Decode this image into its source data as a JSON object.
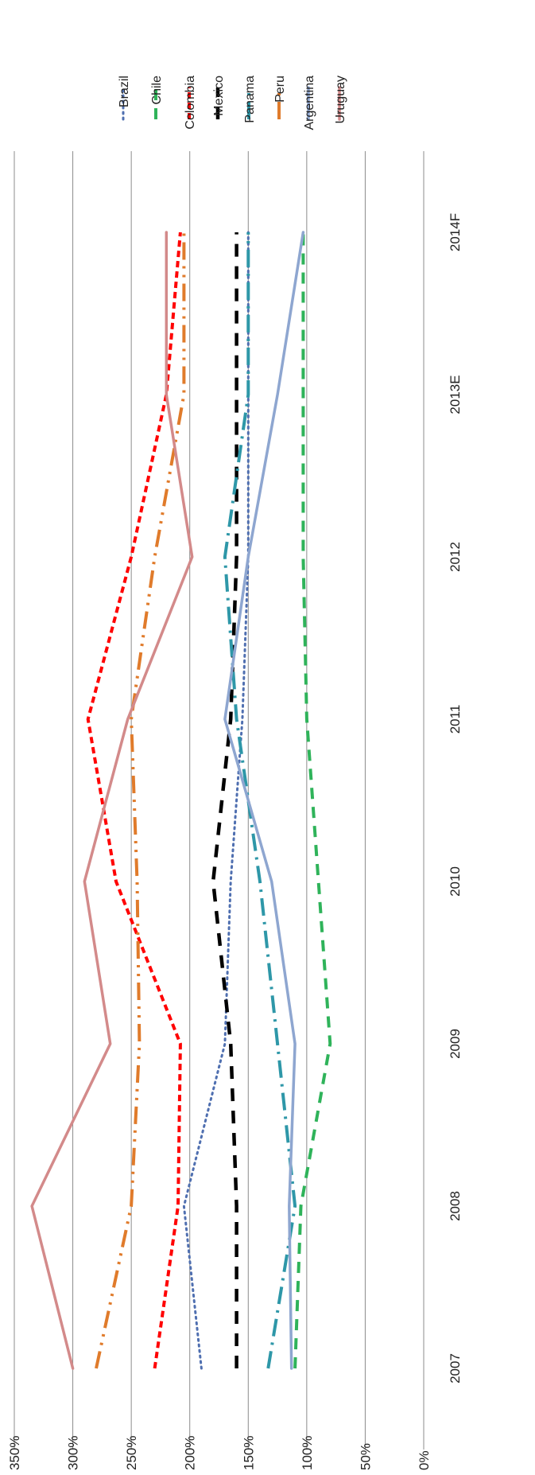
{
  "chart_data": {
    "type": "line",
    "orientation": "rotated 90° clockwise (category axis runs top-to-bottom, value axis runs left-to-right)",
    "categories": [
      "2007",
      "2008",
      "2009",
      "2010",
      "2011",
      "2012",
      "2013E",
      "2014F"
    ],
    "ylim": [
      0,
      350
    ],
    "yticks": [
      "0%",
      "50%",
      "100%",
      "150%",
      "200%",
      "250%",
      "300%",
      "350%"
    ],
    "grid": true,
    "legend_position": "top",
    "series": [
      {
        "name": "Brazil",
        "color": "#4f6fb0",
        "dash": "dotted",
        "values": [
          190,
          205,
          170,
          165,
          155,
          150,
          150,
          150
        ]
      },
      {
        "name": "Chile",
        "color": "#2fb35a",
        "dash": "long-dash",
        "values": [
          110,
          105,
          80,
          90,
          100,
          103,
          103,
          103
        ]
      },
      {
        "name": "Colombia",
        "color": "#ff0000",
        "dash": "short-dash",
        "values": [
          230,
          210,
          208,
          263,
          287,
          250,
          220,
          208
        ]
      },
      {
        "name": "Mexico",
        "color": "#000000",
        "dash": "dash",
        "values": [
          160,
          160,
          165,
          180,
          165,
          160,
          160,
          160
        ]
      },
      {
        "name": "Panama",
        "color": "#2e97a8",
        "dash": "dash-dot",
        "values": [
          133,
          110,
          125,
          140,
          160,
          170,
          150,
          150
        ]
      },
      {
        "name": "Peru",
        "color": "#e07b2b",
        "dash": "dash-dot-dot",
        "values": [
          280,
          250,
          243,
          245,
          250,
          230,
          205,
          205
        ]
      },
      {
        "name": "Argentina",
        "color": "#8ea6d0",
        "dash": "solid",
        "values": [
          113,
          115,
          110,
          130,
          170,
          150,
          125,
          103
        ]
      },
      {
        "name": "Uruguay",
        "color": "#d38a8a",
        "dash": "solid",
        "values": [
          300,
          335,
          268,
          290,
          253,
          198,
          220,
          220
        ]
      }
    ]
  }
}
